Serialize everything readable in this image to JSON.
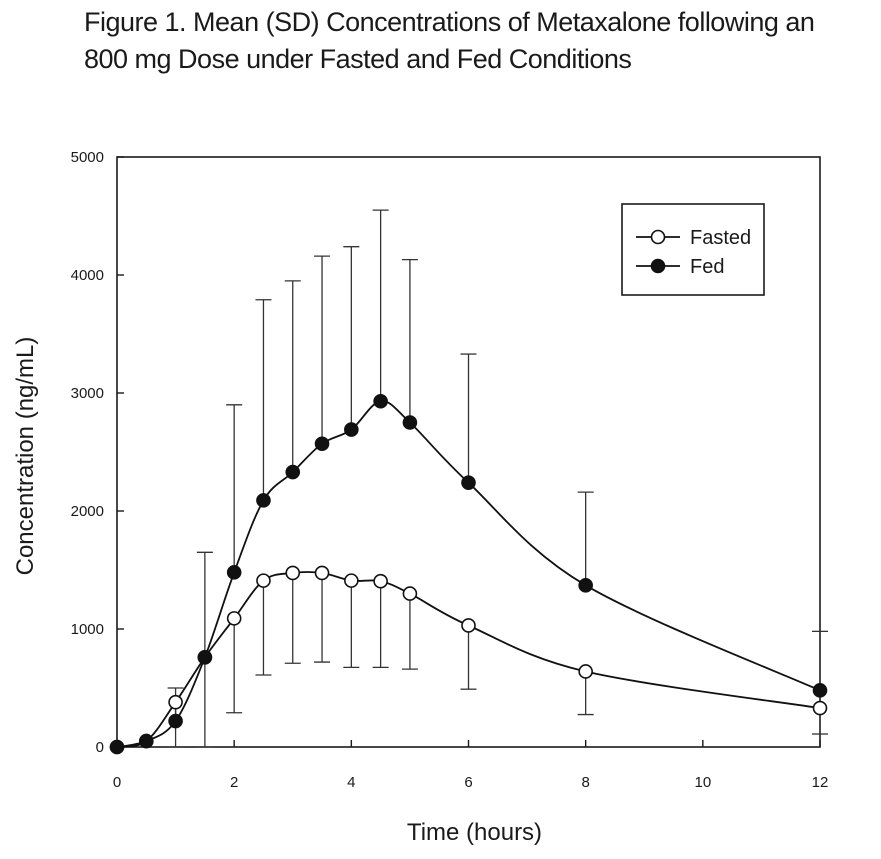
{
  "chart_data": {
    "type": "line",
    "title_line1": "Figure 1.  Mean (SD) Concentrations of Metaxalone following an",
    "title_line2": "800 mg Dose under Fasted and Fed Conditions",
    "xlabel": "Time (hours)",
    "ylabel": "Concentration (ng/mL)",
    "xlim": [
      0,
      12
    ],
    "ylim": [
      0,
      5000
    ],
    "xticks": [
      0,
      2,
      4,
      6,
      8,
      10,
      12
    ],
    "yticks": [
      0,
      1000,
      2000,
      3000,
      4000,
      5000
    ],
    "grid": false,
    "legend_position": "top-right",
    "series": [
      {
        "name": "Fasted",
        "marker": "open-circle",
        "x": [
          0,
          0.5,
          1,
          1.5,
          2,
          2.5,
          3,
          3.5,
          4,
          4.5,
          5,
          6,
          8,
          12
        ],
        "y": [
          0,
          50,
          380,
          760,
          1090,
          1410,
          1475,
          1475,
          1410,
          1405,
          1300,
          1030,
          640,
          330
        ],
        "err_lower": [
          0,
          0,
          380,
          760,
          800,
          800,
          765,
          755,
          735,
          730,
          640,
          540,
          365,
          220
        ],
        "err_upper": [
          0,
          0,
          0,
          0,
          0,
          0,
          0,
          0,
          0,
          0,
          0,
          0,
          0,
          0
        ]
      },
      {
        "name": "Fed",
        "marker": "filled-circle",
        "x": [
          0,
          0.5,
          1,
          1.5,
          2,
          2.5,
          3,
          3.5,
          4,
          4.5,
          5,
          6,
          8,
          12
        ],
        "y": [
          0,
          50,
          220,
          760,
          1480,
          2090,
          2330,
          2570,
          2690,
          2930,
          2750,
          2240,
          1370,
          480
        ],
        "err_lower": [
          0,
          0,
          0,
          0,
          0,
          0,
          0,
          0,
          0,
          0,
          0,
          0,
          0,
          0
        ],
        "err_upper": [
          0,
          0,
          280,
          890,
          1420,
          1700,
          1620,
          1590,
          1550,
          1620,
          1380,
          1090,
          790,
          500
        ]
      }
    ]
  }
}
